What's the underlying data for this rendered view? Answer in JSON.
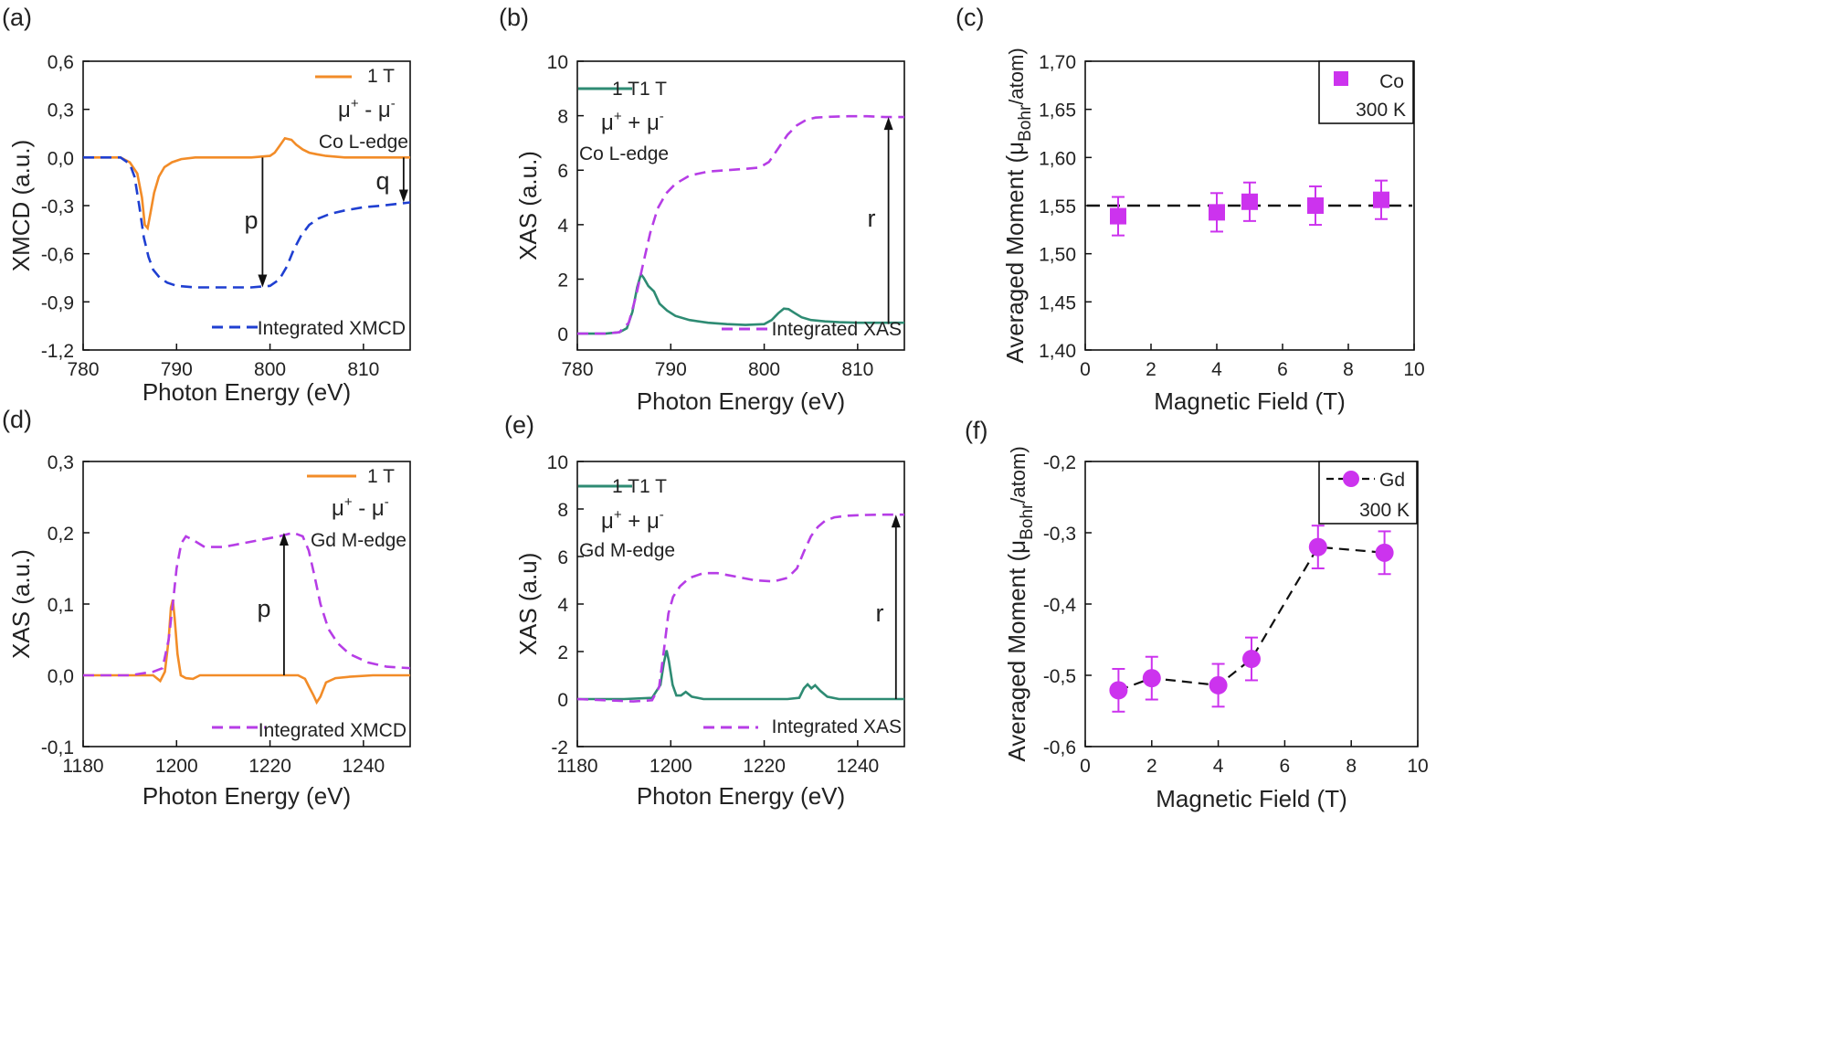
{
  "chart_data": [
    {
      "id": "a",
      "panel_label": "(a)",
      "type": "line",
      "xlabel": "Photon Energy (eV)",
      "ylabel": "XMCD (a.u.)",
      "xlim": [
        780,
        815
      ],
      "ylim": [
        -1.2,
        0.6
      ],
      "xticks": [
        780,
        790,
        800,
        810
      ],
      "yticks": [
        0.6,
        0.3,
        0.0,
        -0.3,
        -0.6,
        -0.9,
        -1.2
      ],
      "ytick_labels": [
        "0,6",
        "0,3",
        "0,0",
        "-0,3",
        "-0,6",
        "-0,9",
        "-1,2"
      ],
      "legend": [
        "1 T",
        "Integrated XMCD"
      ],
      "annotations": {
        "formula": [
          "μ",
          "+",
          " - μ",
          "-"
        ],
        "edge": "Co L-edge",
        "p": "p",
        "q": "q"
      },
      "series": [
        {
          "name": "1 T",
          "style": "solid",
          "color": "#F28C28",
          "x": [
            780,
            784,
            785,
            785.8,
            786.3,
            786.6,
            786.9,
            787.2,
            787.6,
            788.1,
            788.7,
            789.5,
            790.5,
            792,
            795,
            798,
            800,
            800.5,
            801,
            801.6,
            802.3,
            802.8,
            803.5,
            804.2,
            805,
            806,
            808,
            810,
            812,
            815
          ],
          "y": [
            0.0,
            0.0,
            -0.03,
            -0.1,
            -0.25,
            -0.42,
            -0.44,
            -0.35,
            -0.22,
            -0.12,
            -0.06,
            -0.03,
            -0.01,
            0.0,
            0.0,
            0.0,
            0.01,
            0.03,
            0.07,
            0.12,
            0.11,
            0.08,
            0.05,
            0.03,
            0.02,
            0.01,
            0.0,
            0.0,
            0.0,
            0.0
          ]
        },
        {
          "name": "Integrated XMCD",
          "style": "dashed",
          "color": "#1F3FD1",
          "x": [
            780,
            784,
            785,
            785.5,
            786,
            786.5,
            787,
            787.5,
            788.2,
            789,
            790,
            792,
            795,
            798,
            800,
            801,
            801.8,
            802.5,
            803.3,
            804.2,
            805.2,
            806.5,
            808,
            810,
            812,
            815
          ],
          "y": [
            0.0,
            0.0,
            -0.04,
            -0.12,
            -0.3,
            -0.5,
            -0.62,
            -0.7,
            -0.75,
            -0.78,
            -0.8,
            -0.81,
            -0.81,
            -0.81,
            -0.8,
            -0.76,
            -0.68,
            -0.58,
            -0.49,
            -0.42,
            -0.38,
            -0.35,
            -0.33,
            -0.31,
            -0.3,
            -0.28
          ]
        }
      ],
      "arrows": [
        {
          "label": "p",
          "x": 799.2,
          "y_from": 0.0,
          "y_to": -0.81
        },
        {
          "label": "q",
          "x": 814.3,
          "y_from": 0.0,
          "y_to": -0.28
        }
      ]
    },
    {
      "id": "b",
      "panel_label": "(b)",
      "type": "line",
      "xlabel": "Photon Energy (eV)",
      "ylabel": "XAS (a.u.)",
      "xlim": [
        780,
        815
      ],
      "ylim": [
        -0.6,
        10
      ],
      "xticks": [
        780,
        790,
        800,
        810
      ],
      "yticks": [
        0,
        2,
        4,
        6,
        8,
        10
      ],
      "ytick_labels": [
        "0",
        "2",
        "4",
        "6",
        "8",
        "10"
      ],
      "legend": [
        "1 T",
        "Integrated XAS"
      ],
      "annotations": {
        "formula": [
          "μ",
          "+",
          " + μ",
          "-"
        ],
        "edge": "Co L-edge",
        "r": "r"
      },
      "series": [
        {
          "name": "1 T",
          "style": "solid",
          "color": "#2E8B73",
          "x": [
            780,
            783,
            784.5,
            785.3,
            785.9,
            786.4,
            786.8,
            787.1,
            787.6,
            788.2,
            788.8,
            789.6,
            790.5,
            792,
            794,
            796,
            798,
            800,
            800.8,
            801.5,
            802.1,
            802.6,
            803.3,
            804,
            805,
            806.5,
            808,
            810,
            812,
            815
          ],
          "y": [
            0.0,
            0.0,
            0.05,
            0.2,
            0.8,
            1.7,
            2.18,
            2.05,
            1.75,
            1.55,
            1.1,
            0.85,
            0.65,
            0.5,
            0.4,
            0.35,
            0.32,
            0.35,
            0.5,
            0.75,
            0.92,
            0.9,
            0.75,
            0.6,
            0.5,
            0.45,
            0.42,
            0.4,
            0.4,
            0.4
          ]
        },
        {
          "name": "Integrated XAS",
          "style": "dashed",
          "color": "#B63DE6",
          "x": [
            780,
            783,
            784.5,
            785.5,
            786.3,
            787,
            787.8,
            788.6,
            789.5,
            790.5,
            792,
            794,
            796,
            798,
            799.5,
            800.5,
            801.5,
            802.5,
            803.5,
            804.5,
            805.5,
            807,
            809,
            811,
            813,
            815
          ],
          "y": [
            0.0,
            0.0,
            0.05,
            0.4,
            1.4,
            2.5,
            3.7,
            4.6,
            5.15,
            5.5,
            5.8,
            5.95,
            6.0,
            6.05,
            6.1,
            6.3,
            6.8,
            7.3,
            7.65,
            7.85,
            7.93,
            7.96,
            7.98,
            7.98,
            7.95,
            7.95
          ]
        }
      ],
      "arrows": [
        {
          "label": "r",
          "x": 813.3,
          "y_from": 0.35,
          "y_to": 7.95
        }
      ]
    },
    {
      "id": "c",
      "panel_label": "(c)",
      "type": "scatter",
      "xlabel": "Magnetic Field (T)",
      "ylabel": [
        "Averaged  Moment (μ",
        "Bohr",
        "/atom)"
      ],
      "xlim": [
        0,
        10
      ],
      "ylim": [
        1.4,
        1.7
      ],
      "xticks": [
        0,
        2,
        4,
        6,
        8,
        10
      ],
      "yticks": [
        1.4,
        1.45,
        1.5,
        1.55,
        1.6,
        1.65,
        1.7
      ],
      "ytick_labels": [
        "1,40",
        "1,45",
        "1,50",
        "1,55",
        "1,60",
        "1,65",
        "1,70"
      ],
      "legend": [
        "Co",
        "300 K"
      ],
      "marker": "square",
      "color": "#CC33EE",
      "x": [
        1,
        4,
        5,
        7,
        9
      ],
      "y": [
        1.539,
        1.543,
        1.554,
        1.55,
        1.556
      ],
      "err": [
        0.02,
        0.02,
        0.02,
        0.02,
        0.02
      ],
      "reference_line": {
        "y": 1.55,
        "style": "dashed"
      }
    },
    {
      "id": "d",
      "panel_label": "(d)",
      "type": "line",
      "xlabel": "Photon Energy (eV)",
      "ylabel": "XAS (a.u.)",
      "xlim": [
        1180,
        1250
      ],
      "ylim": [
        -0.1,
        0.3
      ],
      "xticks": [
        1180,
        1200,
        1220,
        1240
      ],
      "yticks": [
        0.3,
        0.2,
        0.1,
        0.0,
        -0.1
      ],
      "ytick_labels": [
        "0,3",
        "0,2",
        "0,1",
        "0,0",
        "-0,1"
      ],
      "legend": [
        "1 T",
        "Integrated XMCD"
      ],
      "annotations": {
        "formula": [
          "μ",
          "+",
          " - μ",
          "-"
        ],
        "edge": "Gd M-edge",
        "p": "p"
      },
      "series": [
        {
          "name": "1 T",
          "style": "solid",
          "color": "#F28C28",
          "x": [
            1180,
            1190,
            1195,
            1196.5,
            1197.5,
            1198.3,
            1198.8,
            1199.2,
            1199.6,
            1200.2,
            1200.9,
            1202,
            1203.5,
            1205,
            1208,
            1212,
            1216,
            1220,
            1224,
            1226,
            1227.5,
            1228.5,
            1229.3,
            1230,
            1230.8,
            1232,
            1234,
            1237,
            1242,
            1250
          ],
          "y": [
            0.0,
            0.0,
            0.0,
            -0.008,
            0.005,
            0.05,
            0.095,
            0.106,
            0.08,
            0.03,
            0.0,
            -0.004,
            -0.005,
            0.0,
            0.0,
            0.0,
            0.0,
            0.0,
            0.0,
            0.0,
            -0.005,
            -0.018,
            -0.028,
            -0.038,
            -0.03,
            -0.01,
            -0.004,
            -0.002,
            0.0,
            0.0
          ]
        },
        {
          "name": "Integrated XMCD",
          "style": "dashed",
          "color": "#B63DE6",
          "x": [
            1180,
            1190,
            1195,
            1197,
            1198.3,
            1199.2,
            1200,
            1201,
            1202,
            1203.5,
            1206,
            1210,
            1214,
            1218,
            1222,
            1225,
            1227,
            1228.3,
            1229.5,
            1230.8,
            1232.5,
            1234.5,
            1237,
            1241,
            1245,
            1250
          ],
          "y": [
            0.0,
            0.0,
            0.005,
            0.01,
            0.05,
            0.1,
            0.15,
            0.185,
            0.195,
            0.19,
            0.18,
            0.18,
            0.185,
            0.19,
            0.195,
            0.2,
            0.195,
            0.175,
            0.14,
            0.1,
            0.065,
            0.045,
            0.03,
            0.018,
            0.012,
            0.01
          ]
        }
      ],
      "arrows": [
        {
          "label": "p",
          "x": 1223,
          "y_from": 0.0,
          "y_to": 0.2
        }
      ]
    },
    {
      "id": "e",
      "panel_label": "(e)",
      "type": "line",
      "xlabel": "Photon Energy (eV)",
      "ylabel": "XAS (a.u)",
      "xlim": [
        1180,
        1250
      ],
      "ylim": [
        -2,
        10
      ],
      "xticks": [
        1180,
        1200,
        1220,
        1240
      ],
      "yticks": [
        -2,
        0,
        2,
        4,
        6,
        8,
        10
      ],
      "ytick_labels": [
        "-2",
        "0",
        "2",
        "4",
        "6",
        "8",
        "10"
      ],
      "legend": [
        "1 T",
        "Integrated XAS"
      ],
      "annotations": {
        "formula": [
          "μ",
          "+",
          " + μ",
          "-"
        ],
        "edge": "Gd M-edge",
        "r": "r"
      },
      "series": [
        {
          "name": "1 T",
          "style": "solid",
          "color": "#2E8B73",
          "x": [
            1180,
            1190,
            1196,
            1197.8,
            1198.5,
            1199.1,
            1199.6,
            1200.4,
            1201.2,
            1202.2,
            1203.2,
            1204.5,
            1207,
            1215,
            1225,
            1227.5,
            1228.5,
            1229.3,
            1230.1,
            1230.9,
            1232,
            1233.5,
            1236,
            1242,
            1250
          ],
          "y": [
            0.0,
            0.0,
            0.05,
            0.6,
            1.5,
            2.05,
            1.6,
            0.6,
            0.15,
            0.15,
            0.3,
            0.1,
            0.0,
            0.0,
            0.0,
            0.05,
            0.45,
            0.62,
            0.45,
            0.58,
            0.35,
            0.1,
            0.0,
            0.0,
            0.0
          ]
        },
        {
          "name": "Integrated XAS",
          "style": "dashed",
          "color": "#B63DE6",
          "x": [
            1180,
            1186,
            1192,
            1196,
            1197.5,
            1198.5,
            1199.5,
            1200.5,
            1202,
            1204,
            1207,
            1210,
            1214,
            1218,
            1222,
            1225,
            1227,
            1228.5,
            1230,
            1231.5,
            1233,
            1235,
            1238,
            1242,
            1246,
            1250
          ],
          "y": [
            0.0,
            -0.05,
            -0.1,
            -0.05,
            0.5,
            2.0,
            3.6,
            4.3,
            4.75,
            5.1,
            5.3,
            5.3,
            5.15,
            5.0,
            4.95,
            5.1,
            5.5,
            6.2,
            6.85,
            7.25,
            7.5,
            7.65,
            7.72,
            7.75,
            7.76,
            7.76
          ]
        }
      ],
      "arrows": [
        {
          "label": "r",
          "x": 1248.2,
          "y_from": 0.0,
          "y_to": 7.76
        }
      ]
    },
    {
      "id": "f",
      "panel_label": "(f)",
      "type": "line",
      "xlabel": "Magnetic Field (T)",
      "ylabel": [
        "Averaged Moment (μ",
        "Bohr",
        "/atom)"
      ],
      "xlim": [
        0,
        10
      ],
      "ylim": [
        -0.6,
        -0.2
      ],
      "xticks": [
        0,
        2,
        4,
        6,
        8,
        10
      ],
      "yticks": [
        -0.2,
        -0.3,
        -0.4,
        -0.5,
        -0.6
      ],
      "ytick_labels": [
        "-0,2",
        "-0,3",
        "-0,4",
        "-0,5",
        "-0,6"
      ],
      "legend": [
        "Gd",
        "300 K"
      ],
      "marker": "circle",
      "color": "#CC33EE",
      "x": [
        1,
        2,
        4,
        5,
        7,
        9
      ],
      "y": [
        -0.521,
        -0.504,
        -0.514,
        -0.477,
        -0.32,
        -0.328
      ],
      "err": [
        0.03,
        0.03,
        0.03,
        0.03,
        0.03,
        0.03
      ],
      "connect": "dashed"
    }
  ]
}
